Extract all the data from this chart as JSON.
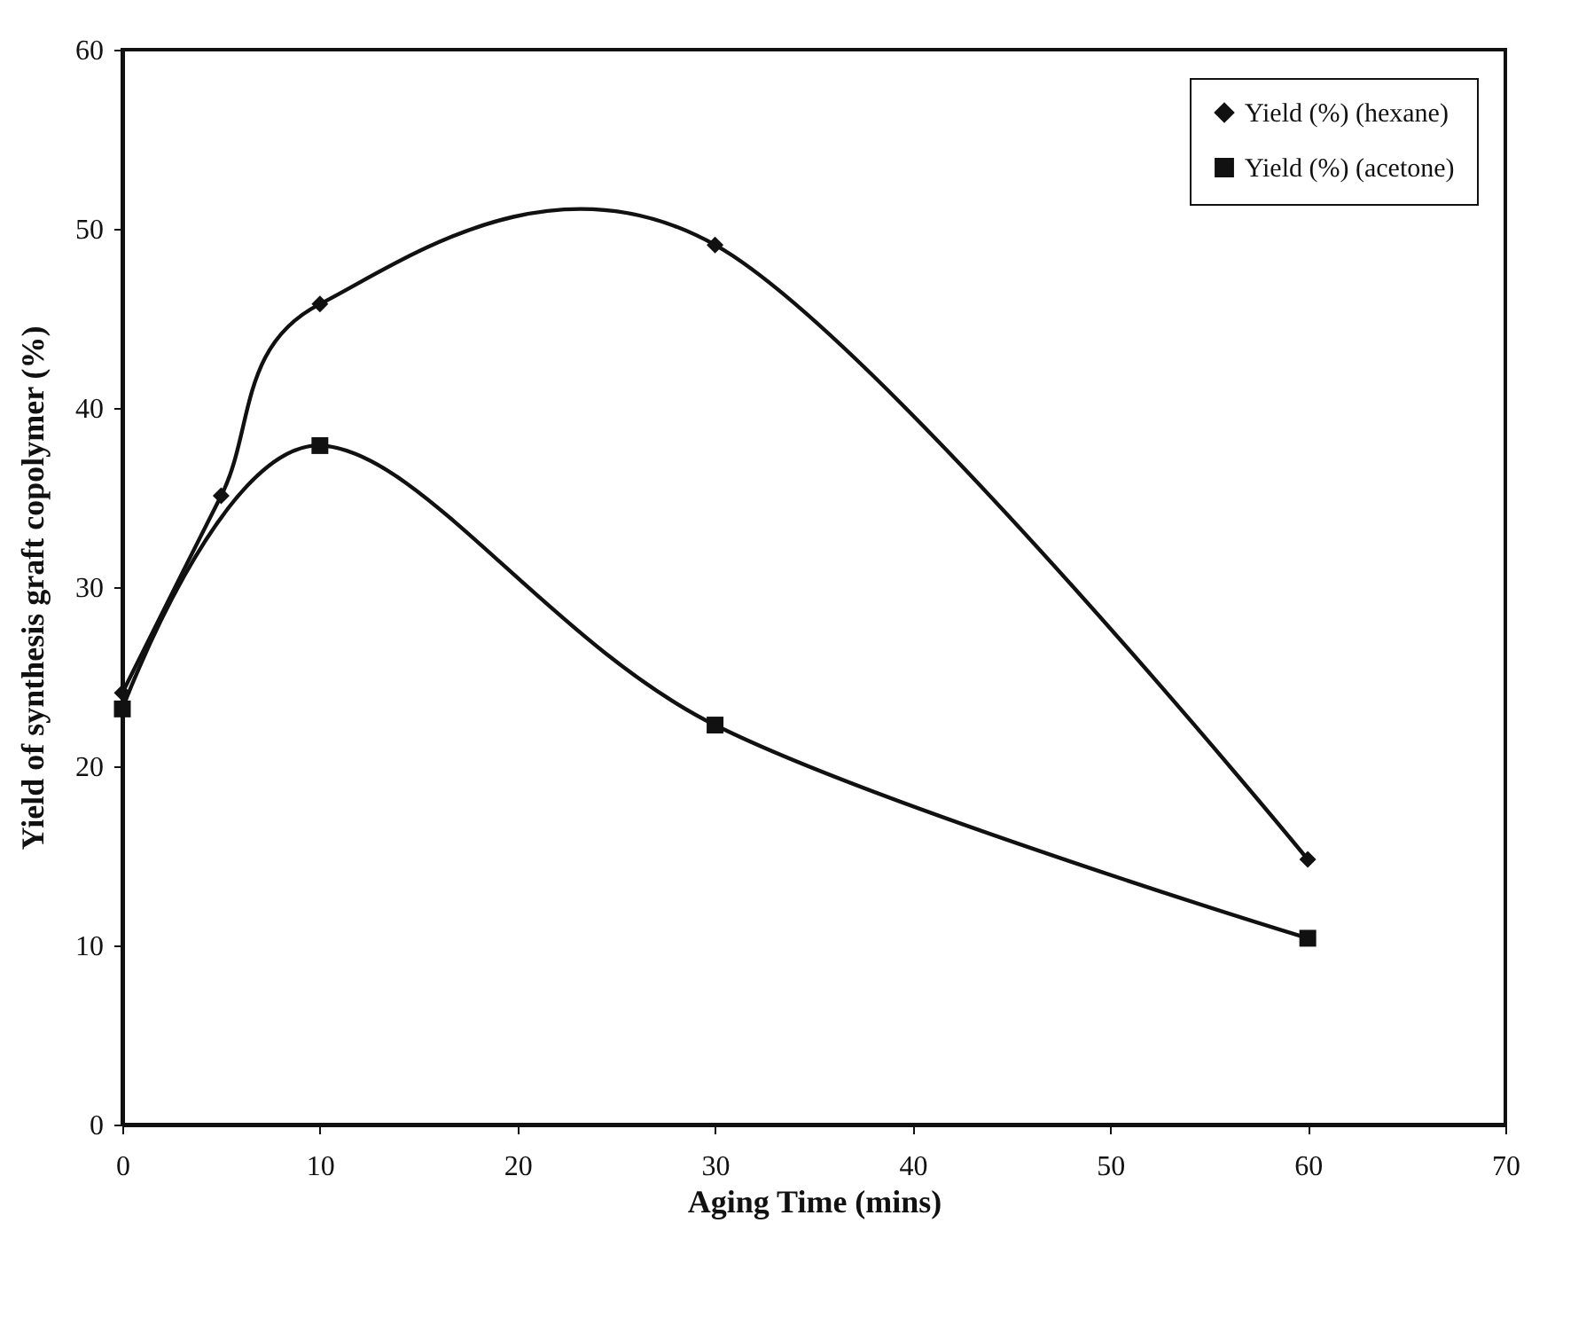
{
  "chart_data": {
    "type": "line",
    "xlabel": "Aging Time (mins)",
    "ylabel": "Yield of synthesis graft copolymer (%)",
    "series": [
      {
        "name": "Yield (%) (hexane)",
        "color": "#111111",
        "marker": "diamond",
        "x": [
          0,
          5,
          10,
          30,
          60
        ],
        "values": [
          24.1,
          35.1,
          45.8,
          49.1,
          14.8
        ]
      },
      {
        "name": "Yield (%) (acetone)",
        "color": "#111111",
        "marker": "square",
        "x": [
          0,
          10,
          30,
          60
        ],
        "values": [
          23.2,
          37.9,
          22.3,
          10.4
        ]
      }
    ],
    "xlim": [
      0,
      70
    ],
    "xticks": [
      0,
      10,
      20,
      30,
      40,
      50,
      60,
      70
    ],
    "ylim": [
      0,
      60
    ],
    "yticks": [
      0,
      10,
      20,
      30,
      40,
      50,
      60
    ],
    "grid": false,
    "legend": "top right",
    "line_style": "solid"
  }
}
